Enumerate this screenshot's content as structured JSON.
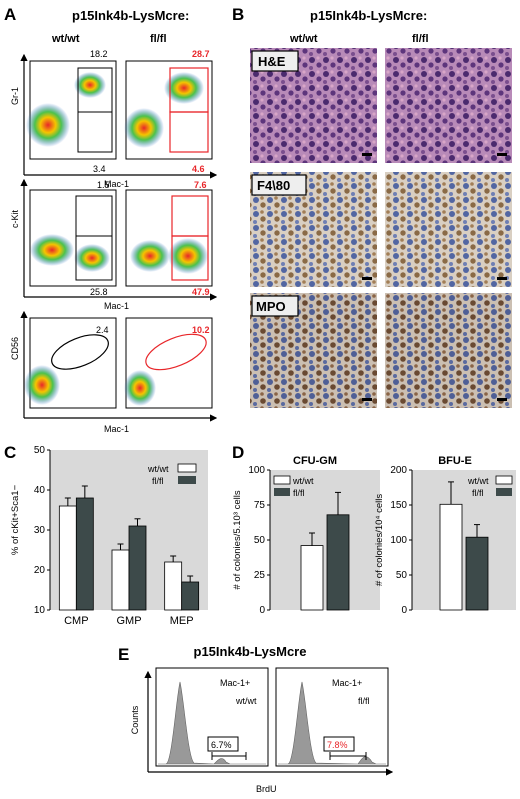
{
  "panelA": {
    "letter": "A",
    "title": "p15Ink4b-LysMcre:",
    "col_wt": "wt/wt",
    "col_fl": "fl/fl",
    "row1": {
      "y_axis": "Gr-1",
      "x_axis": "Mac-1",
      "wt_top": "18.2",
      "fl_top": "28.7",
      "wt_bottom": "3.4",
      "fl_bottom": "4.6"
    },
    "row2": {
      "y_axis": "c-Kit",
      "x_axis": "Mac-1",
      "wt_top": "1.5",
      "fl_top": "7.6",
      "wt_bottom": "25.8",
      "fl_bottom": "47.9"
    },
    "row3": {
      "y_axis": "CD56",
      "x_axis": "Mac-1",
      "wt_val": "2.4",
      "fl_val": "10.2"
    }
  },
  "panelB": {
    "letter": "B",
    "title": "p15Ink4b-LysMcre:",
    "col_wt": "wt/wt",
    "col_fl": "fl/fl",
    "rows": [
      "H&E",
      "F4\\80",
      "MPO"
    ]
  },
  "panelC": {
    "letter": "C",
    "ylabel": "% of cKit+Sca1−",
    "legend": [
      "wt/wt",
      "fl/fl"
    ],
    "chart_data": {
      "type": "bar",
      "categories": [
        "CMP",
        "GMP",
        "MEP"
      ],
      "series": [
        {
          "name": "wt/wt",
          "values": [
            36,
            25,
            22
          ],
          "errors": [
            2,
            1.5,
            1.5
          ]
        },
        {
          "name": "fl/fl",
          "values": [
            38,
            31,
            17
          ],
          "errors": [
            3,
            1.8,
            1.5
          ]
        }
      ],
      "ylim": [
        10,
        50
      ],
      "yticks": [
        10,
        20,
        30,
        40,
        50
      ]
    }
  },
  "panelD": {
    "letter": "D",
    "left": {
      "title": "CFU-GM",
      "ylabel": "# of colonies/5.10³ cells",
      "legend": [
        "wt/wt",
        "fl/fl"
      ],
      "chart_data": {
        "type": "bar",
        "series": [
          {
            "name": "wt/wt",
            "values": [
              46
            ],
            "errors": [
              9
            ]
          },
          {
            "name": "fl/fl",
            "values": [
              68
            ],
            "errors": [
              16
            ]
          }
        ],
        "ylim": [
          0,
          100
        ],
        "yticks": [
          0,
          25,
          50,
          75,
          100
        ]
      }
    },
    "right": {
      "title": "BFU-E",
      "ylabel": "# of colonies/10⁴ cells",
      "legend": [
        "wt/wt",
        "fl/fl"
      ],
      "chart_data": {
        "type": "bar",
        "series": [
          {
            "name": "wt/wt",
            "values": [
              151
            ],
            "errors": [
              32
            ]
          },
          {
            "name": "fl/fl",
            "values": [
              104
            ],
            "errors": [
              18
            ]
          }
        ],
        "ylim": [
          0,
          200
        ],
        "yticks": [
          0,
          50,
          100,
          150,
          200
        ]
      }
    }
  },
  "panelE": {
    "letter": "E",
    "title": "p15Ink4b-LysMcre",
    "ylabel": "Counts",
    "xlabel": "BrdU",
    "wt": {
      "marker": "Mac-1+",
      "genotype": "wt/wt",
      "pct": "6.7%"
    },
    "fl": {
      "marker": "Mac-1+",
      "genotype": "fl/fl",
      "pct": "7.8%"
    }
  },
  "colors": {
    "red": "#e8262a",
    "dark_bar": "#3d4a4a",
    "bg_gray": "#d9d9d9"
  }
}
